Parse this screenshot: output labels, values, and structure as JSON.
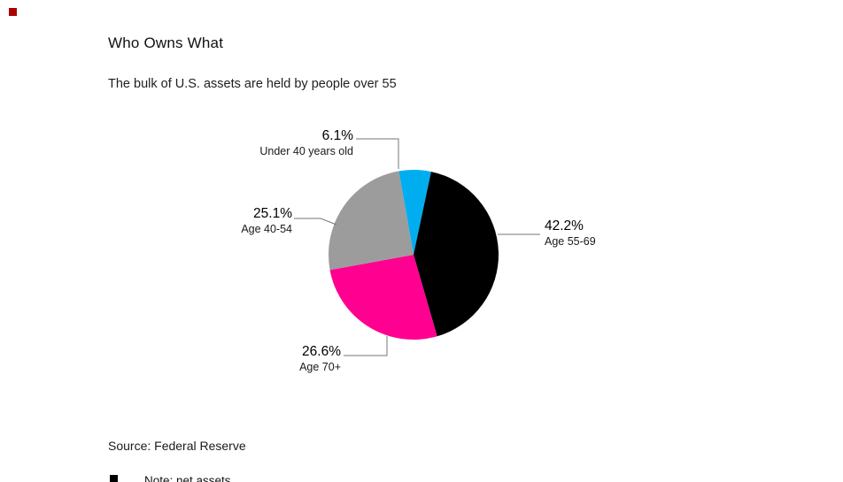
{
  "page": {
    "brand_square_color": "#aa0000",
    "clipped_note": "Note: net assets"
  },
  "chart_data": {
    "type": "pie",
    "title": "Who Owns What",
    "subtitle": "The bulk of U.S. assets are held by people over 55",
    "source": "Source: Federal Reserve",
    "start_angle_deg": -10,
    "direction": "clockwise",
    "legend_position": "outside-callouts",
    "slices": [
      {
        "name": "Under 40 years old",
        "value": 6.1,
        "pct_label": "6.1%",
        "color": "#00aeef"
      },
      {
        "name": "Age 55-69",
        "value": 42.2,
        "pct_label": "42.2%",
        "color": "#000000"
      },
      {
        "name": "Age 70+",
        "value": 26.6,
        "pct_label": "26.6%",
        "color": "#ff0090"
      },
      {
        "name": "Age 40-54",
        "value": 25.1,
        "pct_label": "25.1%",
        "color": "#9c9c9c"
      }
    ]
  }
}
